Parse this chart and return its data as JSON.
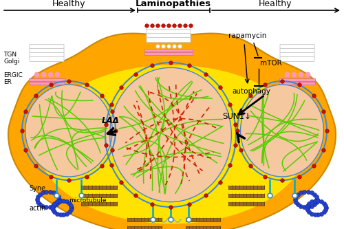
{
  "figw": 5.0,
  "figh": 3.33,
  "dpi": 100,
  "bg_white": "#ffffff",
  "cell_orange": "#ffa500",
  "cell_yellow": "#ffee00",
  "cell_edge": "#cc8800",
  "nucleus_bg": "#f5c8a0",
  "nucleus_blue1": "#4488cc",
  "nucleus_blue2": "#6699dd",
  "lamin_green": "#55cc00",
  "lamin_red": "#cc2200",
  "sun1_red": "#cc1100",
  "sun1_edge": "#880000",
  "golgi_white": "#ffffff",
  "golgi_edge": "#cccccc",
  "er_pink": "#ff99bb",
  "mt_brown": "#996633",
  "mt_dark": "#664400",
  "actin_blue": "#2244cc",
  "actin_edge": "#111188",
  "syne_cyan": "#00aacc",
  "arrow_black": "#111111",
  "text_black": "#111111",
  "label_healthy": "Healthy",
  "label_laminopathies": "Laminopathies",
  "label_TGN": "TGN",
  "label_Golgi": "Golgi",
  "label_ERGIC": "ERGIC",
  "label_ER": "ER",
  "label_Syne": "Syne",
  "label_micro": "microtubule",
  "label_actin": "actin",
  "label_LAD": "LAΔ",
  "label_SUN1": "SUN1↓",
  "label_rapamycin": "rapamycin",
  "label_mTOR": "mTOR",
  "label_autophagy": "autophagy"
}
